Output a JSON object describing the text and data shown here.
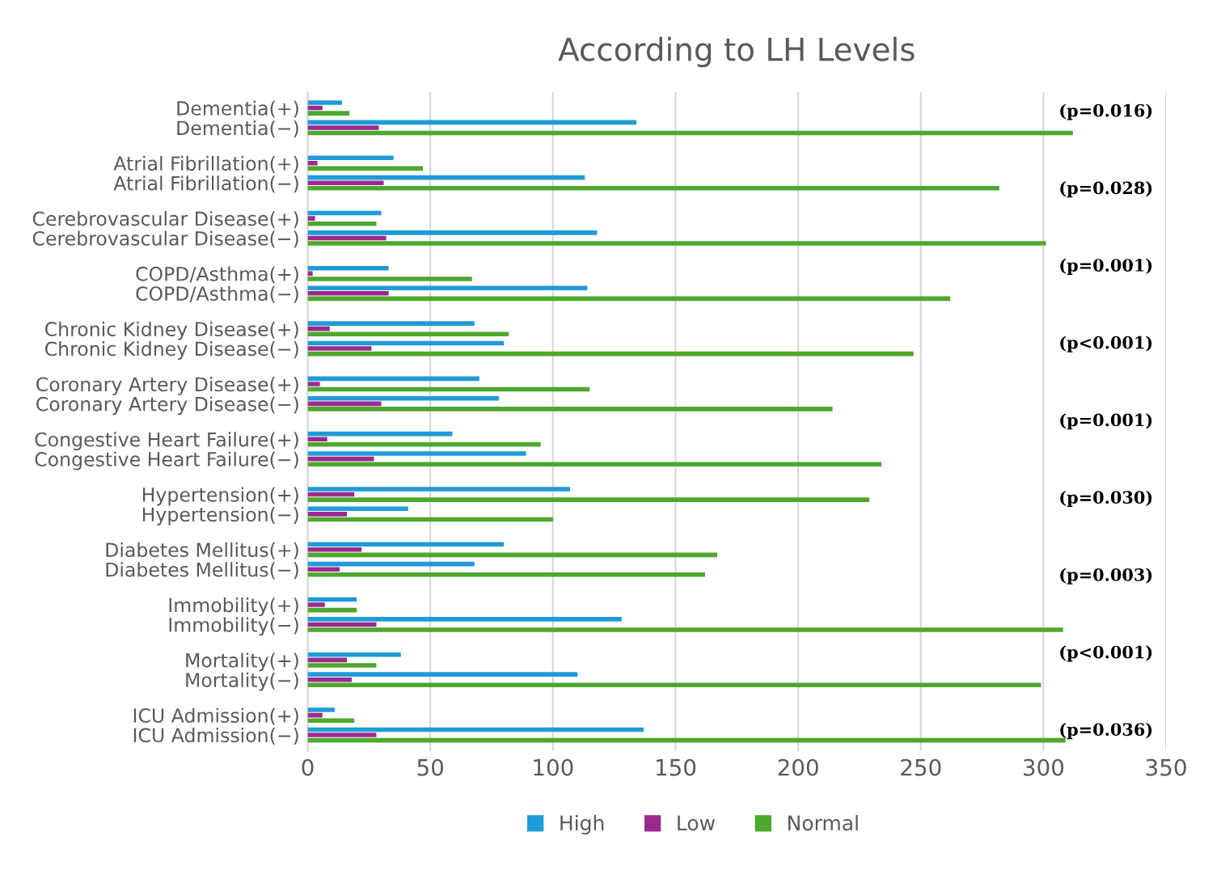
{
  "chart_data": {
    "type": "bar",
    "orientation": "horizontal",
    "title": "According to LH Levels",
    "categories": [
      "Dementia(+)",
      "Dementia(−)",
      "Atrial Fibrillation(+)",
      "Atrial Fibrillation(−)",
      "Cerebrovascular Disease(+)",
      "Cerebrovascular Disease(−)",
      "COPD/Asthma(+)",
      "COPD/Asthma(−)",
      "Chronic Kidney Disease(+)",
      "Chronic Kidney Disease(−)",
      "Coronary Artery Disease(+)",
      "Coronary Artery Disease(−)",
      "Congestive Heart Failure(+)",
      "Congestive Heart Failure(−)",
      "Hypertension(+)",
      "Hypertension(−)",
      "Diabetes Mellitus(+)",
      "Diabetes Mellitus(−)",
      "Immobility(+)",
      "Immobility(−)",
      "Mortality(+)",
      "Mortality(−)",
      "ICU Admission(+)",
      "ICU Admission(−)"
    ],
    "series": [
      {
        "name": "High",
        "color": "#1f9bd7",
        "values": [
          14,
          134,
          35,
          113,
          30,
          118,
          33,
          114,
          68,
          80,
          70,
          78,
          59,
          89,
          107,
          41,
          80,
          68,
          20,
          128,
          38,
          110,
          11,
          137
        ]
      },
      {
        "name": "Low",
        "color": "#9b2a8f",
        "values": [
          6,
          29,
          4,
          31,
          3,
          32,
          2,
          33,
          9,
          26,
          5,
          30,
          8,
          27,
          19,
          16,
          22,
          13,
          7,
          28,
          16,
          18,
          6,
          28
        ]
      },
      {
        "name": "Normal",
        "color": "#4ea72e",
        "values": [
          17,
          312,
          47,
          282,
          28,
          301,
          67,
          262,
          82,
          247,
          115,
          214,
          95,
          234,
          229,
          100,
          167,
          162,
          20,
          308,
          28,
          299,
          19,
          309
        ]
      }
    ],
    "xlim": [
      0,
      350
    ],
    "xticks": [
      0,
      50,
      100,
      150,
      200,
      250,
      300,
      350
    ],
    "grid": "x",
    "legend": "bottom",
    "annotations": [
      "(p=0.016)",
      "(p=0.028)",
      "(p=0.001)",
      "(p<0.001)",
      "(p=0.001)",
      "(p=0.030)",
      "(p=0.003)",
      "(p<0.001)",
      "(p=0.036)"
    ]
  }
}
